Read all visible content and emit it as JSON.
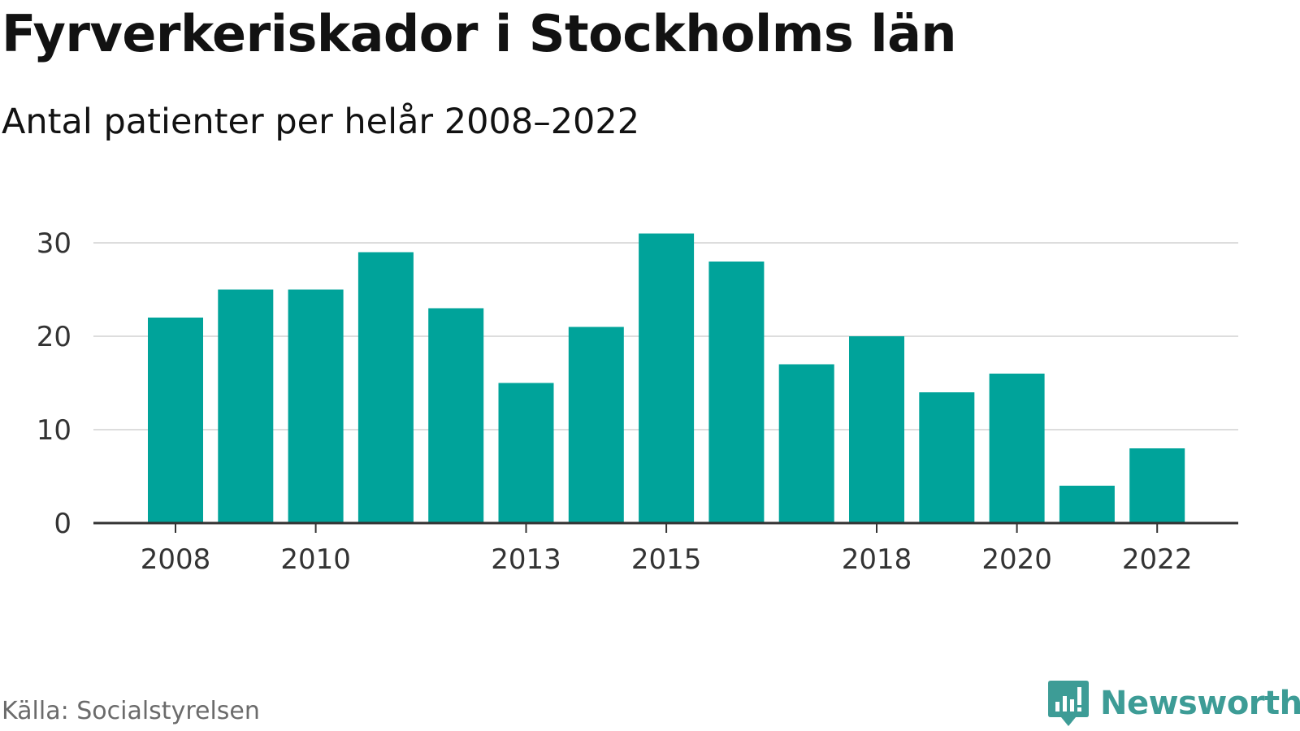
{
  "title": "Fyrverkeriskador i Stockholms län",
  "subtitle": "Antal patienter per helår 2008–2022",
  "source": "Källa: Socialstyrelsen",
  "logo": {
    "text": "Newsworthy",
    "icon": "newsworthy-logo-icon",
    "color": "#3d9c96"
  },
  "colors": {
    "bar": "#00a39a",
    "grid": "#dddddd",
    "axis": "#333333"
  },
  "chart_data": {
    "type": "bar",
    "categories": [
      "2008",
      "2009",
      "2010",
      "2011",
      "2012",
      "2013",
      "2014",
      "2015",
      "2016",
      "2017",
      "2018",
      "2019",
      "2020",
      "2021",
      "2022"
    ],
    "values": [
      22,
      25,
      25,
      29,
      23,
      15,
      21,
      31,
      28,
      17,
      20,
      14,
      16,
      4,
      8
    ],
    "x_tick_labels": [
      "2008",
      "2010",
      "2013",
      "2015",
      "2018",
      "2020",
      "2022"
    ],
    "y_ticks": [
      0,
      10,
      20,
      30
    ],
    "ylim": [
      0,
      31
    ],
    "title": "Fyrverkeriskador i Stockholms län",
    "subtitle": "Antal patienter per helår 2008–2022",
    "xlabel": "",
    "ylabel": "",
    "grid": true,
    "legend": "none"
  }
}
